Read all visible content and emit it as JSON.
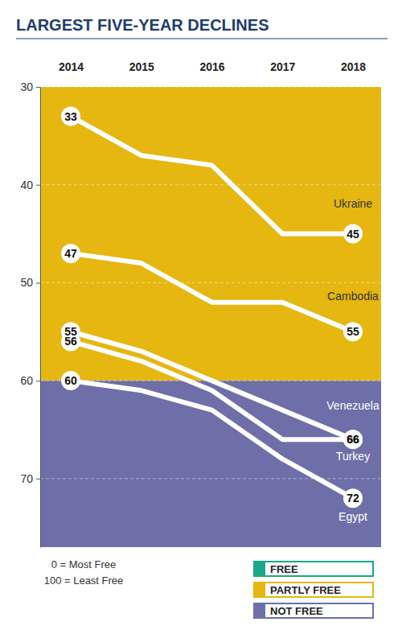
{
  "chart_data": {
    "type": "line",
    "title": "LARGEST FIVE-YEAR DECLINES",
    "categories": [
      "2014",
      "2015",
      "2016",
      "2017",
      "2018"
    ],
    "series": [
      {
        "name": "Ukraine",
        "color": "#ffffff",
        "values": [
          33,
          37,
          38,
          45,
          45
        ],
        "value_labels": [
          "33",
          null,
          null,
          null,
          "45"
        ]
      },
      {
        "name": "Cambodia",
        "color": "#ffffff",
        "values": [
          47,
          48,
          52,
          52,
          55
        ],
        "value_labels": [
          "47",
          null,
          null,
          null,
          "55"
        ]
      },
      {
        "name": "Venezuela",
        "color": "#ffffff",
        "values": [
          55,
          57,
          60,
          63,
          66
        ],
        "value_labels": [
          "55",
          null,
          null,
          null,
          "66"
        ]
      },
      {
        "name": "Turkey",
        "color": "#ffffff",
        "values": [
          56,
          58,
          61,
          66,
          66
        ],
        "value_labels": [
          "56",
          null,
          null,
          null,
          "66"
        ]
      },
      {
        "name": "Egypt",
        "color": "#ffffff",
        "values": [
          60,
          61,
          63,
          68,
          72
        ],
        "value_labels": [
          "60",
          null,
          null,
          null,
          "72"
        ]
      }
    ],
    "ylim": [
      30,
      77
    ],
    "yticks": [
      30,
      40,
      50,
      60,
      70
    ],
    "grid": true,
    "legend": "lower right",
    "regions": [
      {
        "name": "FREE",
        "color": "#1aa98a"
      },
      {
        "name": "PARTLY FREE",
        "color": "#e5b710",
        "from": 30,
        "to": 60
      },
      {
        "name": "NOT FREE",
        "color": "#6e6fa8",
        "from": 60,
        "to": 77
      }
    ],
    "notes": [
      "0 = Most Free",
      "100 = Least Free"
    ]
  }
}
